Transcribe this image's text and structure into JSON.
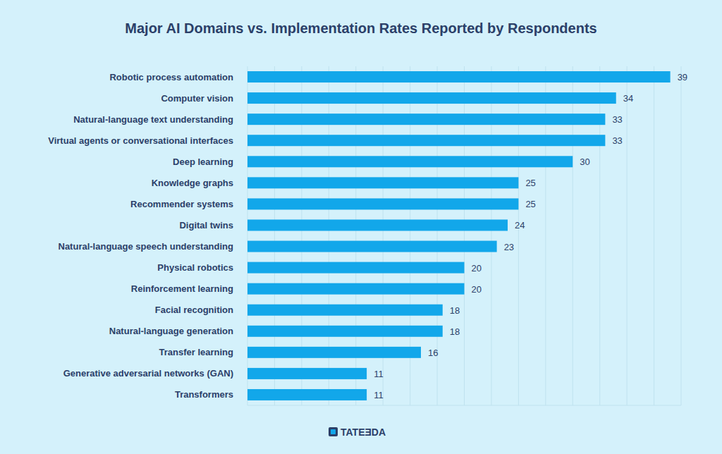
{
  "chart_data": {
    "type": "bar",
    "orientation": "horizontal",
    "title": "Major AI Domains vs. Implementation Rates Reported by Respondents",
    "categories": [
      "Robotic process automation",
      "Computer vision",
      "Natural-language text understanding",
      "Virtual agents or conversational interfaces",
      "Deep learning",
      "Knowledge graphs",
      "Recommender systems",
      "Digital twins",
      "Natural-language speech understanding",
      "Physical robotics",
      "Reinforcement learning",
      "Facial recognition",
      "Natural-language generation",
      "Transfer learning",
      "Generative adversarial networks (GAN)",
      "Transformers"
    ],
    "values": [
      39,
      34,
      33,
      33,
      30,
      25,
      25,
      24,
      23,
      20,
      20,
      18,
      18,
      16,
      11,
      11
    ],
    "color": "#12a7ea",
    "xlim": [
      0,
      40
    ],
    "xticks": [
      0,
      2.5,
      5,
      7.5,
      10,
      12.5,
      15,
      17.5,
      20,
      22.5,
      25,
      27.5,
      30,
      32.5,
      35,
      37.5,
      40
    ],
    "grid": true,
    "data_labels": true,
    "tick_labels": false,
    "annotations": [
      "TATEƎDA"
    ]
  }
}
